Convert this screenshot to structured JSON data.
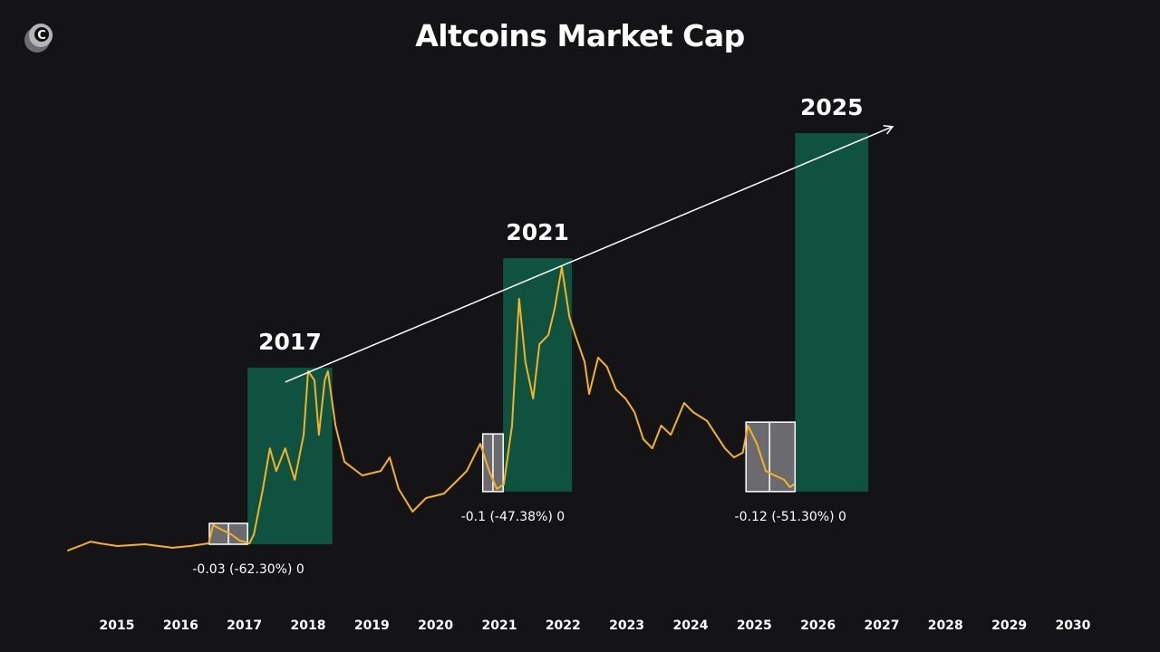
{
  "chart_data": {
    "type": "line",
    "title": "Altcoins Market Cap",
    "xlabel": "",
    "ylabel": "",
    "grid": false,
    "xlim": [
      2014.2,
      2030.5
    ],
    "ylim": [
      0,
      150
    ],
    "x_ticks": [
      "2015",
      "2016",
      "2017",
      "2018",
      "2019",
      "2020",
      "2021",
      "2022",
      "2023",
      "2024",
      "2025",
      "2026",
      "2027",
      "2028",
      "2029",
      "2030"
    ],
    "series": [
      {
        "name": "Altcoins Market Cap",
        "color": "#f5b223",
        "x": [
          2014.23,
          2014.45,
          2014.59,
          2014.73,
          2015.01,
          2015.44,
          2015.87,
          2016.15,
          2016.44,
          2016.51,
          2016.65,
          2016.79,
          2016.93,
          2017.08,
          2017.15,
          2017.29,
          2017.4,
          2017.5,
          2017.64,
          2017.79,
          2017.93,
          2018.0,
          2018.1,
          2018.17,
          2018.26,
          2018.31,
          2018.43,
          2018.57,
          2018.85,
          2019.14,
          2019.28,
          2019.42,
          2019.64,
          2019.85,
          2020.13,
          2020.35,
          2020.49,
          2020.7,
          2020.84,
          2020.96,
          2021.07,
          2021.2,
          2021.31,
          2021.41,
          2021.53,
          2021.63,
          2021.77,
          2021.87,
          2021.98,
          2022.1,
          2022.19,
          2022.34,
          2022.41,
          2022.55,
          2022.69,
          2022.83,
          2022.98,
          2023.12,
          2023.26,
          2023.4,
          2023.54,
          2023.69,
          2023.9,
          2024.04,
          2024.26,
          2024.4,
          2024.54,
          2024.68,
          2024.82,
          2024.9,
          2025.04,
          2025.18,
          2025.32,
          2025.47,
          2025.56,
          2025.62
        ],
        "y": [
          2.2,
          4.0,
          5.2,
          4.6,
          3.7,
          4.3,
          3.1,
          3.7,
          4.6,
          10.8,
          9.2,
          7.7,
          5.5,
          4.6,
          7.7,
          23.1,
          36.9,
          29.2,
          36.9,
          26.2,
          41.5,
          63.1,
          60.0,
          41.5,
          60.0,
          63.1,
          44.6,
          32.3,
          27.7,
          29.2,
          33.8,
          23.1,
          15.4,
          20.0,
          21.5,
          26.2,
          29.2,
          38.5,
          29.2,
          23.1,
          24.6,
          44.6,
          87.7,
          66.2,
          53.8,
          72.3,
          75.4,
          84.6,
          98.5,
          81.5,
          75.4,
          66.2,
          55.4,
          67.7,
          64.6,
          56.9,
          53.8,
          49.2,
          40.0,
          36.9,
          44.6,
          41.5,
          52.3,
          49.2,
          46.2,
          41.5,
          36.9,
          33.8,
          35.4,
          44.6,
          38.5,
          29.2,
          27.7,
          26.2,
          23.7,
          24.6
        ]
      }
    ],
    "cycles": [
      {
        "label": "2017",
        "green": {
          "x": [
            2017.05,
            2018.38
          ],
          "y": [
            4.3,
            64.3
          ]
        },
        "gray": {
          "x": [
            2016.45,
            2017.05
          ],
          "y": [
            4.3,
            11.4
          ],
          "mid": 2016.75
        },
        "annotation": "-0.03 (-62.30%) 0"
      },
      {
        "label": "2021",
        "green": {
          "x": [
            2021.06,
            2022.14
          ],
          "y": [
            22.2,
            101.5
          ]
        },
        "gray": {
          "x": [
            2020.74,
            2021.06
          ],
          "y": [
            22.2,
            41.8
          ],
          "mid": 2020.9
        },
        "annotation": "-0.1 (-47.38%) 0"
      },
      {
        "label": "2025",
        "green": {
          "x": [
            2025.64,
            2026.79
          ],
          "y": [
            22.2,
            144.0
          ]
        },
        "gray": {
          "x": [
            2024.87,
            2025.64
          ],
          "y": [
            22.2,
            45.8
          ],
          "mid": 2025.24
        },
        "annotation": "-0.12 (-51.30%) 0"
      }
    ],
    "trend_arrow": {
      "x": [
        2017.64,
        2027.17
      ],
      "y": [
        59.4,
        146.2
      ]
    },
    "colors": {
      "green": "#0f5240",
      "gray": "#6b6a6e",
      "line": "#f5b223",
      "background": "#141316"
    }
  },
  "logo": {
    "letter": "C"
  }
}
